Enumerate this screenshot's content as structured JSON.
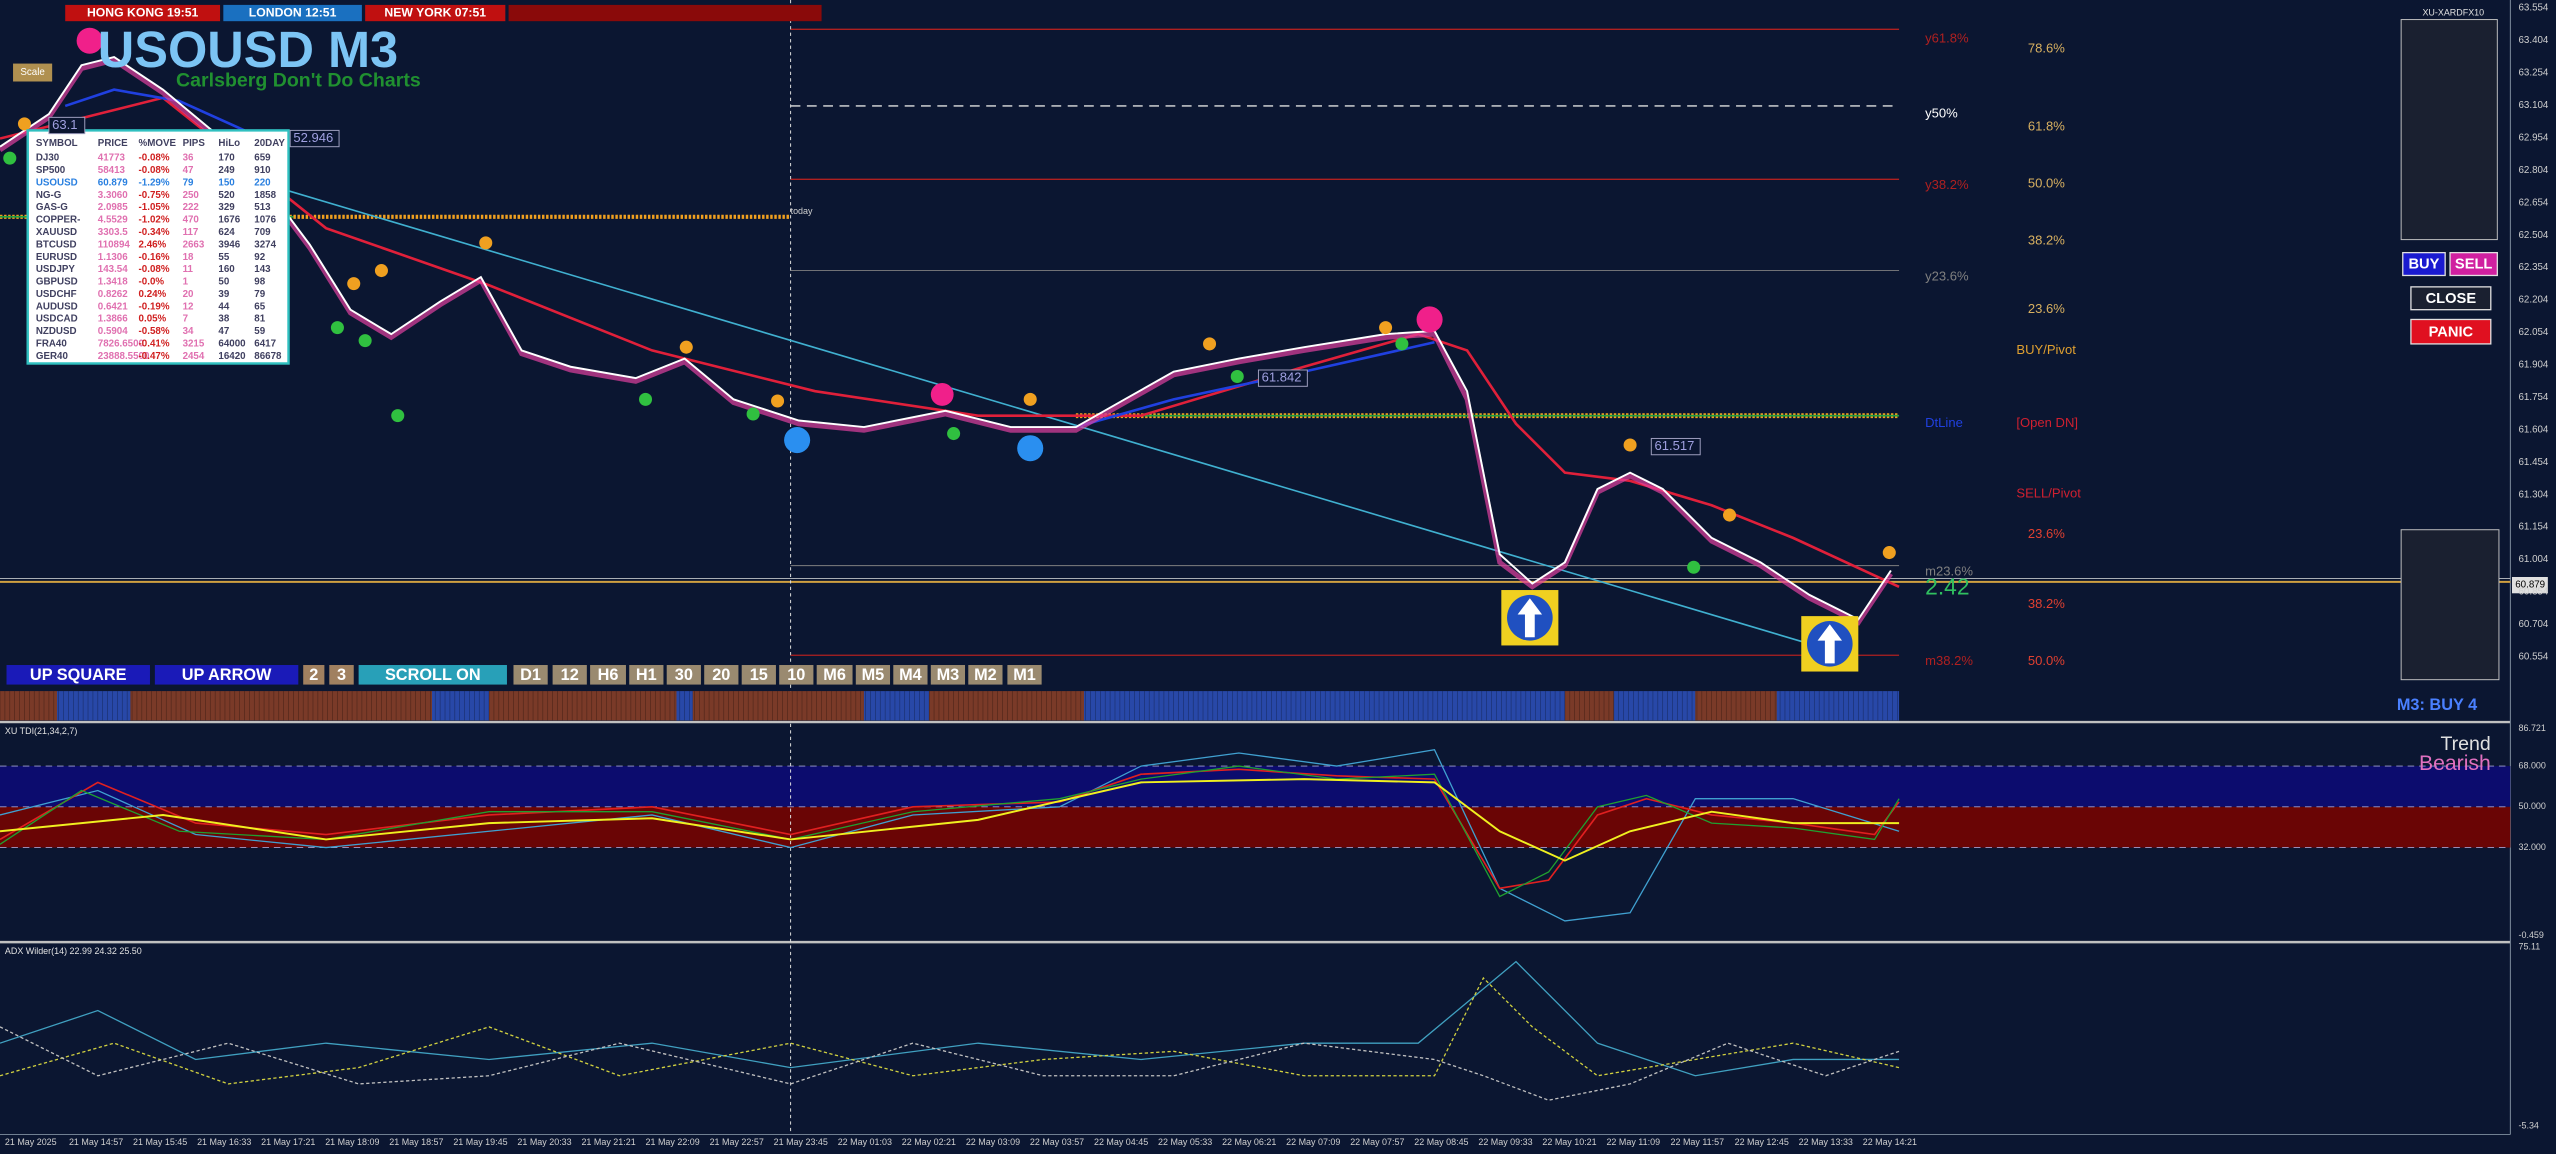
{
  "header": {
    "clocks": [
      "HONG KONG 19:51",
      "LONDON 12:51",
      "NEW YORK 07:51"
    ],
    "symbol_title": "USOUSD M3",
    "subtitle": "Carlsberg Don't Do Charts",
    "scale_button": "Scale",
    "broker": "XU-XARDFX10"
  },
  "market_table": {
    "columns": [
      "SYMBOL",
      "PRICE",
      "%MOVE",
      "PIPS",
      "HiLo",
      "20DAY"
    ],
    "rows": [
      [
        "DJ30",
        "41773",
        "-0.08%",
        "36",
        "170",
        "659"
      ],
      [
        "SP500",
        "58413",
        "-0.08%",
        "47",
        "249",
        "910"
      ],
      [
        "USOUSD",
        "60.879",
        "-1.29%",
        "79",
        "150",
        "220"
      ],
      [
        "NG-G",
        "3.3060",
        "-0.75%",
        "250",
        "520",
        "1858"
      ],
      [
        "GAS-G",
        "2.0985",
        "-1.05%",
        "222",
        "329",
        "513"
      ],
      [
        "COPPER-",
        "4.5529",
        "-1.02%",
        "470",
        "1676",
        "1076"
      ],
      [
        "XAUUSD",
        "3303.5",
        "-0.34%",
        "117",
        "624",
        "709"
      ],
      [
        "BTCUSD",
        "110894",
        "2.46%",
        "2663",
        "3946",
        "3274"
      ],
      [
        "EURUSD",
        "1.1306",
        "-0.16%",
        "18",
        "55",
        "92"
      ],
      [
        "USDJPY",
        "143.54",
        "-0.08%",
        "11",
        "160",
        "143"
      ],
      [
        "GBPUSD",
        "1.3418",
        "-0.0%",
        "1",
        "50",
        "98"
      ],
      [
        "USDCHF",
        "0.8262",
        "0.24%",
        "20",
        "39",
        "79"
      ],
      [
        "AUDUSD",
        "0.6421",
        "-0.19%",
        "12",
        "44",
        "65"
      ],
      [
        "USDCAD",
        "1.3866",
        "0.05%",
        "7",
        "38",
        "81"
      ],
      [
        "NZDUSD",
        "0.5904",
        "-0.58%",
        "34",
        "47",
        "59"
      ],
      [
        "FRA40",
        "7826.6500",
        "-0.41%",
        "3215",
        "64000",
        "6417"
      ],
      [
        "GER40",
        "23888.5500",
        "-0.47%",
        "2454",
        "16420",
        "86678"
      ]
    ]
  },
  "chart_labels": {
    "fib_right": [
      "78.6%",
      "61.8%",
      "50.0%",
      "38.2%",
      "23.6%",
      "BUY/Pivot",
      "[Open DN]",
      "SELL/Pivot",
      "23.6%",
      "38.2%",
      "50.0%"
    ],
    "fib_left": [
      "y61.8%",
      "y50%",
      "y38.2%",
      "y23.6%",
      "DtLine",
      "m23.6%",
      "m38.2%"
    ],
    "price_tags": [
      "52.946",
      "61.842",
      "61.517",
      "63.1"
    ],
    "today": "today",
    "spread": "2.42",
    "current_price": "60.879"
  },
  "price_axis": [
    "63.554",
    "63.404",
    "63.254",
    "63.104",
    "62.954",
    "62.804",
    "62.654",
    "62.504",
    "62.354",
    "62.204",
    "62.054",
    "61.904",
    "61.754",
    "61.604",
    "61.454",
    "61.304",
    "61.154",
    "61.004",
    "60.854",
    "60.704",
    "60.554"
  ],
  "timeframe_buttons": [
    "UP SQUARE",
    "UP ARROW",
    "2",
    "3",
    "SCROLL ON",
    "D1",
    "12",
    "H6",
    "H1",
    "30",
    "20",
    "15",
    "10",
    "M6",
    "M5",
    "M4",
    "M3",
    "M2",
    "M1"
  ],
  "signal": "M3: BUY 4",
  "trade_buttons": [
    "BUY",
    "SELL",
    "CLOSE",
    "PANIC"
  ],
  "tdi": {
    "label": "XU TDI(21,34,2,7)",
    "trend_title": "Trend",
    "trend_value": "Bearish",
    "axis": [
      "86.721",
      "68.000",
      "50.000",
      "32.000",
      "-0.459"
    ]
  },
  "adx": {
    "label": "ADX Wilder(14) 22.99 24.32 25.50",
    "axis": [
      "75.11",
      "-5.34"
    ]
  },
  "time_axis": [
    "21 May 2025",
    "21 May 14:57",
    "21 May 15:45",
    "21 May 16:33",
    "21 May 17:21",
    "21 May 18:09",
    "21 May 18:57",
    "21 May 19:45",
    "21 May 20:33",
    "21 May 21:21",
    "21 May 22:09",
    "21 May 22:57",
    "21 May 23:45",
    "22 May 01:03",
    "22 May 02:21",
    "22 May 03:09",
    "22 May 03:57",
    "22 May 04:45",
    "22 May 05:33",
    "22 May 06:21",
    "22 May 07:09",
    "22 May 07:57",
    "22 May 08:45",
    "22 May 09:33",
    "22 May 10:21",
    "22 May 11:09",
    "22 May 11:57",
    "22 May 12:45",
    "22 May 13:33",
    "22 May 14:21"
  ]
}
